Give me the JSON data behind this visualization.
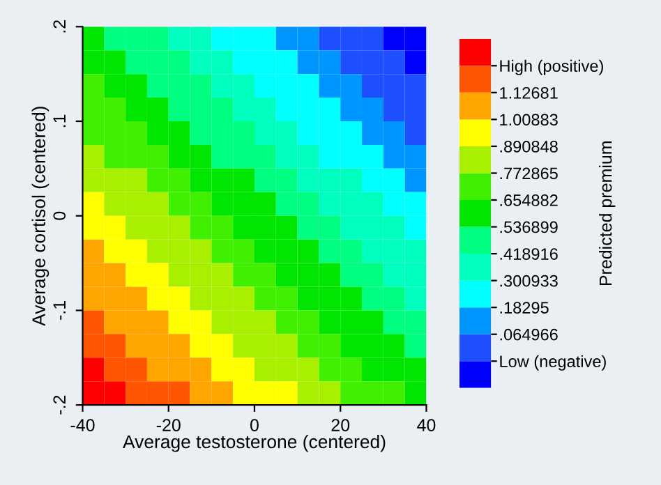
{
  "chart_data": {
    "type": "heatmap",
    "xlabel": "Average testosterone (centered)",
    "ylabel": "Average cortisol (centered)",
    "clabel": "Predicted premium",
    "xlim": [
      -40,
      40
    ],
    "ylim": [
      -0.2,
      0.2
    ],
    "xticks": [
      -40,
      -20,
      0,
      20,
      40
    ],
    "yticks": [
      {
        "value": -0.2,
        "label": "-.2"
      },
      {
        "value": -0.1,
        "label": "-.1"
      },
      0,
      {
        "value": 0.1,
        "label": ".1"
      },
      {
        "value": 0.2,
        "label": ".2"
      }
    ],
    "clim": [
      -0.171,
      1.363
    ],
    "cticks": [
      {
        "value": -0.053017,
        "label": "Low (negative)"
      },
      {
        "value": 0.064966,
        "label": ".064966"
      },
      {
        "value": 0.18295,
        "label": ".18295"
      },
      {
        "value": 0.300933,
        "label": ".300933"
      },
      {
        "value": 0.418916,
        "label": ".418916"
      },
      {
        "value": 0.536899,
        "label": ".536899"
      },
      {
        "value": 0.654882,
        "label": ".654882"
      },
      {
        "value": 0.772865,
        "label": ".772865"
      },
      {
        "value": 0.890848,
        "label": ".890848"
      },
      {
        "value": 1.00883,
        "label": "1.00883"
      },
      {
        "value": 1.12681,
        "label": "1.12681"
      },
      {
        "value": 1.244793,
        "label": "High (positive)"
      }
    ],
    "colors": [
      "#0000ff",
      "#1e50ff",
      "#0096ff",
      "#00ffff",
      "#00ffbe",
      "#00ff80",
      "#00e600",
      "#40f000",
      "#a8f000",
      "#ffff00",
      "#ffa500",
      "#ff5500",
      "#ff0000"
    ],
    "cells": [
      [
        0.596,
        0.478,
        0.478,
        0.478,
        0.36,
        0.36,
        0.242,
        0.242,
        0.242,
        0.124,
        0.124,
        0.006,
        0.006,
        0.006,
        -0.112,
        -0.112
      ],
      [
        0.596,
        0.596,
        0.478,
        0.478,
        0.478,
        0.36,
        0.36,
        0.242,
        0.242,
        0.242,
        0.124,
        0.124,
        0.006,
        0.006,
        0.006,
        -0.112
      ],
      [
        0.714,
        0.596,
        0.596,
        0.478,
        0.478,
        0.478,
        0.36,
        0.36,
        0.242,
        0.242,
        0.242,
        0.124,
        0.124,
        0.006,
        0.006,
        0.006
      ],
      [
        0.714,
        0.714,
        0.596,
        0.596,
        0.478,
        0.478,
        0.478,
        0.36,
        0.36,
        0.242,
        0.242,
        0.242,
        0.124,
        0.124,
        0.006,
        0.006
      ],
      [
        0.714,
        0.714,
        0.714,
        0.596,
        0.596,
        0.478,
        0.478,
        0.478,
        0.36,
        0.36,
        0.242,
        0.242,
        0.242,
        0.124,
        0.124,
        0.006
      ],
      [
        0.832,
        0.714,
        0.714,
        0.714,
        0.596,
        0.596,
        0.478,
        0.478,
        0.478,
        0.36,
        0.36,
        0.242,
        0.242,
        0.242,
        0.124,
        0.124
      ],
      [
        0.832,
        0.832,
        0.832,
        0.714,
        0.714,
        0.596,
        0.596,
        0.596,
        0.478,
        0.478,
        0.36,
        0.36,
        0.36,
        0.242,
        0.242,
        0.124
      ],
      [
        0.95,
        0.832,
        0.832,
        0.832,
        0.714,
        0.714,
        0.596,
        0.596,
        0.596,
        0.478,
        0.478,
        0.36,
        0.36,
        0.36,
        0.242,
        0.242
      ],
      [
        0.95,
        0.95,
        0.832,
        0.832,
        0.832,
        0.714,
        0.714,
        0.596,
        0.596,
        0.596,
        0.478,
        0.478,
        0.36,
        0.36,
        0.36,
        0.242
      ],
      [
        1.068,
        0.95,
        0.95,
        0.832,
        0.832,
        0.832,
        0.714,
        0.714,
        0.596,
        0.596,
        0.596,
        0.478,
        0.478,
        0.36,
        0.36,
        0.36
      ],
      [
        1.068,
        1.068,
        0.95,
        0.95,
        0.832,
        0.832,
        0.832,
        0.714,
        0.714,
        0.596,
        0.596,
        0.596,
        0.478,
        0.478,
        0.36,
        0.36
      ],
      [
        1.068,
        1.068,
        1.068,
        0.95,
        0.95,
        0.832,
        0.832,
        0.832,
        0.714,
        0.714,
        0.596,
        0.596,
        0.596,
        0.478,
        0.478,
        0.36
      ],
      [
        1.186,
        1.068,
        1.068,
        1.068,
        0.95,
        0.95,
        0.832,
        0.832,
        0.832,
        0.714,
        0.714,
        0.596,
        0.596,
        0.596,
        0.478,
        0.478
      ],
      [
        1.186,
        1.186,
        1.068,
        1.068,
        1.068,
        0.95,
        0.95,
        0.832,
        0.832,
        0.832,
        0.714,
        0.714,
        0.596,
        0.596,
        0.596,
        0.478
      ],
      [
        1.304,
        1.186,
        1.186,
        1.068,
        1.068,
        1.068,
        0.95,
        0.95,
        0.832,
        0.832,
        0.832,
        0.714,
        0.714,
        0.596,
        0.596,
        0.596
      ],
      [
        1.304,
        1.304,
        1.186,
        1.186,
        1.186,
        1.068,
        1.068,
        0.95,
        0.95,
        0.95,
        0.832,
        0.832,
        0.714,
        0.714,
        0.714,
        0.596
      ]
    ]
  }
}
